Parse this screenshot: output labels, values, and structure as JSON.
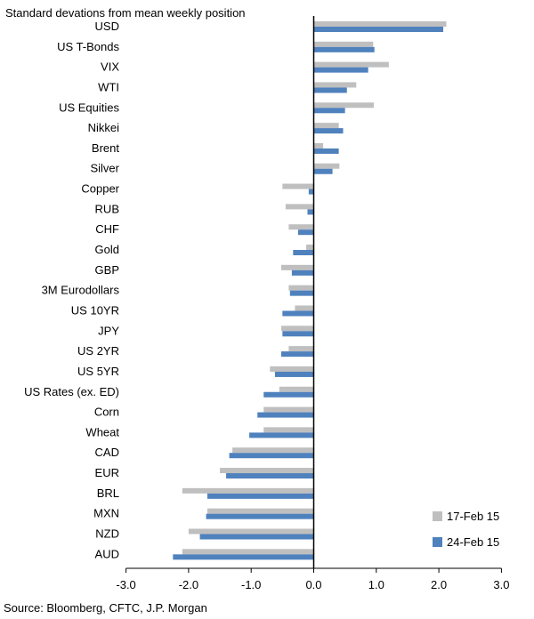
{
  "chart_data": {
    "type": "bar",
    "orientation": "horizontal",
    "title": "Standard devations from mean weekly position",
    "source": "Source: Bloomberg, CFTC, J.P. Morgan",
    "categories": [
      "USD",
      "US T-Bonds",
      "VIX",
      "WTI",
      "US Equities",
      "Nikkei",
      "Brent",
      "Silver",
      "Copper",
      "RUB",
      "CHF",
      "Gold",
      "GBP",
      "3M Eurodollars",
      "US 10YR",
      "JPY",
      "US 2YR",
      "US 5YR",
      "US Rates (ex. ED)",
      "Corn",
      "Wheat",
      "CAD",
      "EUR",
      "BRL",
      "MXN",
      "NZD",
      "AUD"
    ],
    "series": [
      {
        "name": "17-Feb 15",
        "color": "#bfbfbf",
        "values": [
          2.12,
          0.95,
          1.2,
          0.68,
          0.96,
          0.4,
          0.15,
          0.41,
          -0.5,
          -0.45,
          -0.4,
          -0.12,
          -0.52,
          -0.4,
          -0.3,
          -0.52,
          -0.4,
          -0.7,
          -0.55,
          -0.8,
          -0.8,
          -1.3,
          -1.5,
          -2.1,
          -1.7,
          -2.0,
          -2.1
        ]
      },
      {
        "name": "24-Feb 15",
        "color": "#4f81bd",
        "values": [
          2.07,
          0.97,
          0.87,
          0.53,
          0.5,
          0.47,
          0.4,
          0.3,
          -0.08,
          -0.1,
          -0.25,
          -0.33,
          -0.35,
          -0.38,
          -0.5,
          -0.5,
          -0.52,
          -0.62,
          -0.8,
          -0.9,
          -1.03,
          -1.35,
          -1.4,
          -1.7,
          -1.72,
          -1.82,
          -2.25
        ]
      }
    ],
    "xlim": [
      -3.0,
      3.0
    ],
    "xticks": [
      -3.0,
      -2.0,
      -1.0,
      0.0,
      1.0,
      2.0,
      3.0
    ],
    "xtick_labels": [
      "-3.0",
      "-2.0",
      "-1.0",
      "0.0",
      "1.0",
      "2.0",
      "3.0"
    ],
    "legend_position": "bottom-right",
    "grid": false
  }
}
